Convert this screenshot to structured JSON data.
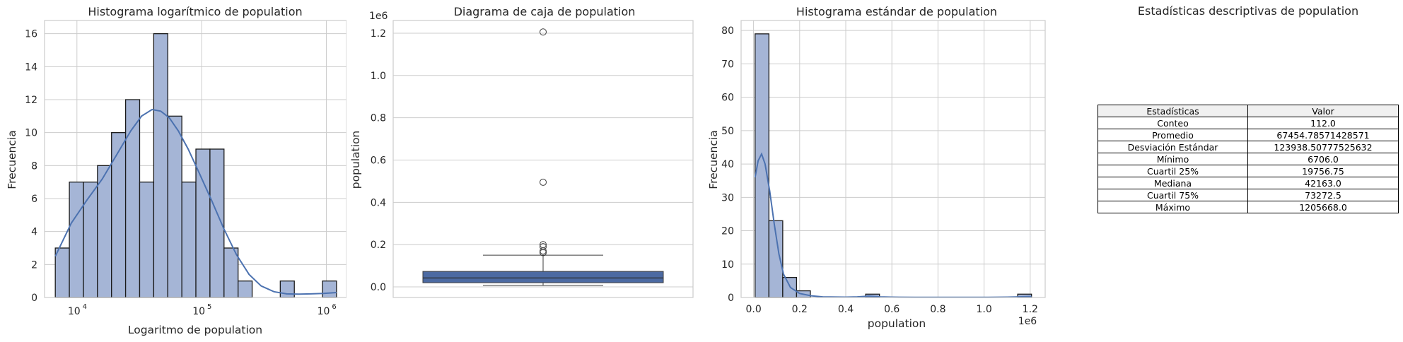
{
  "colors": {
    "bar_fill": "#a5b5d6",
    "bar_edge": "#1a1a1a",
    "kde": "#4c72b0",
    "box_fill": "#4c6aa2",
    "grid": "#cccccc",
    "axis": "#cccccc"
  },
  "chart_data": [
    {
      "type": "bar",
      "title": "Histograma logarítmico de population",
      "xlabel": "Logaritmo de population",
      "ylabel": "Frecuencia",
      "xscale": "log",
      "xlim": [
        5500,
        1450000
      ],
      "ylim": [
        0,
        16.8
      ],
      "yticks": [
        0,
        2,
        4,
        6,
        8,
        10,
        12,
        14,
        16
      ],
      "xticks": [
        {
          "value": 10000,
          "base": "10",
          "exp": "4"
        },
        {
          "value": 100000,
          "base": "10",
          "exp": "5"
        },
        {
          "value": 1000000,
          "base": "10",
          "exp": "6"
        }
      ],
      "bin_range": [
        6706,
        1205668
      ],
      "values": [
        3,
        7,
        7,
        8,
        10,
        12,
        7,
        16,
        11,
        7,
        9,
        9,
        3,
        1,
        0,
        0,
        1,
        0,
        0,
        1
      ],
      "kde": {
        "x": [
          6706,
          9000,
          12000,
          16000,
          21000,
          27000,
          33000,
          40000,
          47000,
          55000,
          65000,
          78000,
          95000,
          120000,
          150000,
          190000,
          240000,
          300000,
          380000,
          480000,
          600000,
          750000,
          950000,
          1205668
        ],
        "y": [
          2.5,
          4.5,
          5.9,
          7.2,
          8.7,
          10.1,
          11.0,
          11.4,
          11.3,
          10.9,
          10.1,
          9.0,
          7.6,
          5.9,
          4.2,
          2.6,
          1.4,
          0.7,
          0.35,
          0.22,
          0.2,
          0.22,
          0.25,
          0.3
        ]
      },
      "grid": true
    },
    {
      "type": "box",
      "title": "Diagrama de caja de population",
      "ylabel": "population",
      "offset_label": "1e6",
      "ylim": [
        -0.05,
        1.26
      ],
      "yticks": [
        0.0,
        0.2,
        0.4,
        0.6,
        0.8,
        1.0,
        1.2
      ],
      "whisker_low": 0.0067,
      "q1": 0.0198,
      "median": 0.0422,
      "q3": 0.0733,
      "whisker_high": 0.15,
      "outliers": [
        0.162,
        0.17,
        0.19,
        0.2,
        0.495,
        1.2057
      ],
      "grid": true
    },
    {
      "type": "bar",
      "title": "Histograma estándar de population",
      "xlabel": "population",
      "ylabel": "Frecuencia",
      "offset_label": "1e6",
      "xlim": [
        -0.054,
        1.265
      ],
      "ylim": [
        0,
        83
      ],
      "xticks": [
        0.0,
        0.2,
        0.4,
        0.6,
        0.8,
        1.0,
        1.2
      ],
      "yticks": [
        0,
        10,
        20,
        30,
        40,
        50,
        60,
        70,
        80
      ],
      "bin_range": [
        0.006706,
        1.205668
      ],
      "values": [
        79,
        23,
        6,
        2,
        0,
        0,
        0,
        0,
        1,
        0,
        0,
        0,
        0,
        0,
        0,
        0,
        0,
        0,
        0,
        1
      ],
      "kde": {
        "x": [
          0.0067,
          0.02,
          0.035,
          0.05,
          0.07,
          0.09,
          0.11,
          0.13,
          0.16,
          0.2,
          0.25,
          0.3,
          0.4,
          0.45,
          0.5,
          0.55,
          0.6,
          0.7,
          0.8,
          0.9,
          1.0,
          1.1,
          1.15,
          1.2,
          1.2057
        ],
        "y": [
          36,
          41,
          43,
          40,
          32,
          22,
          13,
          7,
          3,
          1.2,
          0.5,
          0.2,
          0.1,
          0.2,
          0.4,
          0.2,
          0.1,
          0.05,
          0.05,
          0.05,
          0.05,
          0.1,
          0.2,
          0.3,
          0.3
        ]
      },
      "grid": true
    },
    {
      "type": "table",
      "title": "Estadísticas descriptivas de population",
      "columns": [
        "Estadísticas",
        "Valor"
      ],
      "rows": [
        [
          "Conteo",
          "112.0"
        ],
        [
          "Promedio",
          "67454.78571428571"
        ],
        [
          "Desviación Estándar",
          "123938.50777525632"
        ],
        [
          "Mínimo",
          "6706.0"
        ],
        [
          "Cuartil 25%",
          "19756.75"
        ],
        [
          "Mediana",
          "42163.0"
        ],
        [
          "Cuartil 75%",
          "73272.5"
        ],
        [
          "Máximo",
          "1205668.0"
        ]
      ]
    }
  ]
}
